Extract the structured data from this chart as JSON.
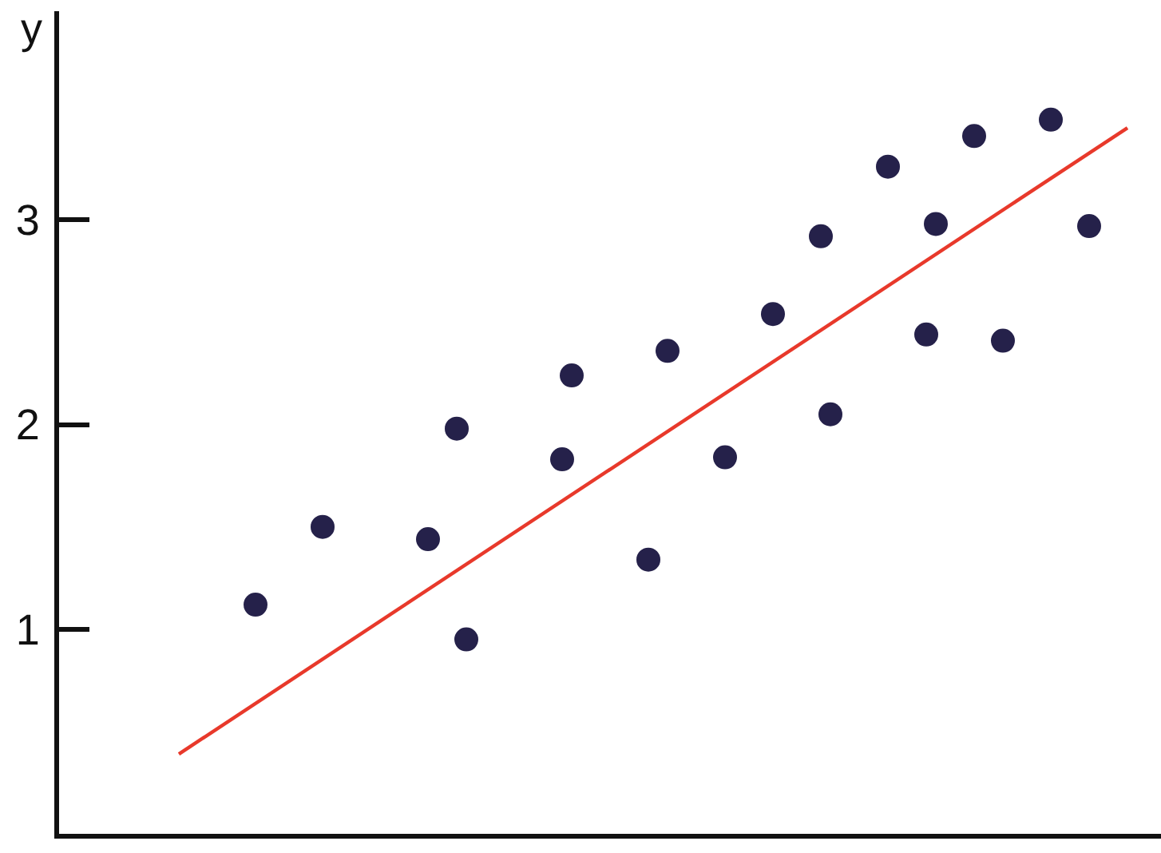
{
  "chart_data": {
    "type": "scatter",
    "ylabel": "y",
    "categories": [
      null,
      null,
      null,
      null,
      null,
      null,
      null,
      null,
      null,
      null,
      null,
      null,
      null,
      null,
      null,
      null,
      null,
      null,
      null,
      null,
      null,
      null,
      null,
      null,
      null,
      null,
      null,
      null,
      null,
      null,
      null,
      null,
      null,
      null,
      null,
      null,
      null,
      null,
      null,
      null,
      null,
      null,
      null,
      null,
      null,
      null,
      null,
      null,
      null,
      null,
      null,
      null,
      null,
      null,
      null,
      null,
      null,
      null,
      null,
      null,
      null,
      null,
      null,
      null,
      null,
      null,
      null,
      null,
      null,
      null,
      null,
      null,
      null,
      null,
      null,
      null,
      null,
      null,
      null,
      null,
      null,
      null,
      null,
      null,
      null,
      null,
      null,
      null,
      null,
      null,
      null,
      null,
      null,
      null,
      null,
      null,
      null,
      null,
      null,
      null,
      null,
      null,
      null,
      null,
      null,
      null,
      null,
      null,
      null,
      null,
      null,
      null,
      null,
      null,
      null
    ],
    "ylim": [
      0,
      4.02
    ],
    "yticks": [
      1,
      2,
      3
    ],
    "tick_labels": "y",
    "marker": "circle",
    "series": [
      {
        "color": "#25214a",
        "values": [
          null,
          null,
          null,
          null,
          null,
          null,
          null,
          null,
          null,
          null,
          null,
          null,
          null,
          null,
          null,
          null,
          null,
          null,
          null,
          null,
          1.12,
          null,
          null,
          null,
          null,
          null,
          null,
          1.5,
          null,
          null,
          null,
          null,
          null,
          null,
          null,
          null,
          null,
          null,
          1.44,
          null,
          null,
          1.98,
          0.95,
          null,
          null,
          null,
          null,
          null,
          null,
          null,
          null,
          null,
          1.83,
          2.24,
          null,
          null,
          null,
          null,
          null,
          null,
          null,
          1.34,
          null,
          2.36,
          null,
          null,
          null,
          null,
          null,
          1.84,
          null,
          null,
          null,
          null,
          2.54,
          null,
          null,
          null,
          null,
          2.92,
          2.05,
          null,
          null,
          null,
          null,
          null,
          3.26,
          null,
          null,
          null,
          2.44,
          2.98,
          null,
          null,
          null,
          3.41,
          null,
          null,
          2.41,
          null,
          null,
          null,
          null,
          3.49,
          null,
          null,
          null,
          2.97,
          null,
          null,
          null,
          null,
          null,
          null,
          null
        ]
      },
      {
        "type": "line",
        "marker": "none",
        "color": "#e8392b",
        "values": [
          null,
          null,
          null,
          null,
          null,
          null,
          null,
          null,
          null,
          null,
          null,
          null,
          0.39,
          null,
          null,
          null,
          null,
          null,
          null,
          null,
          null,
          null,
          null,
          null,
          null,
          null,
          null,
          null,
          null,
          null,
          null,
          null,
          null,
          null,
          null,
          null,
          null,
          null,
          null,
          null,
          null,
          null,
          null,
          null,
          null,
          null,
          null,
          null,
          null,
          null,
          null,
          null,
          null,
          null,
          null,
          null,
          null,
          null,
          null,
          null,
          null,
          null,
          null,
          null,
          null,
          null,
          null,
          null,
          null,
          null,
          null,
          null,
          null,
          null,
          null,
          null,
          null,
          null,
          null,
          null,
          null,
          null,
          null,
          null,
          null,
          null,
          null,
          null,
          null,
          null,
          null,
          null,
          null,
          null,
          null,
          null,
          null,
          null,
          null,
          null,
          null,
          null,
          null,
          null,
          null,
          null,
          null,
          null,
          null,
          null,
          null,
          3.45,
          null,
          null,
          null
        ]
      }
    ]
  }
}
